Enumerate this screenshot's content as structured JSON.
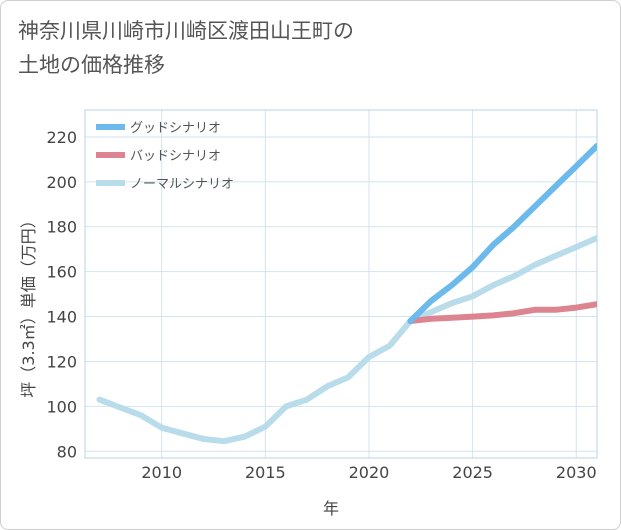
{
  "title_line1": "神奈川県川崎市川崎区渡田山王町の",
  "title_line2": "土地の価格推移",
  "chart_data": {
    "type": "line",
    "title": "神奈川県川崎市川崎区渡田山王町の土地の価格推移",
    "xlabel": "年",
    "ylabel": "坪（3.3㎡）単価（万円）",
    "xlim": [
      2006.3,
      2031
    ],
    "ylim": [
      77,
      232
    ],
    "xticks": [
      2010,
      2015,
      2020,
      2025,
      2030
    ],
    "yticks": [
      80,
      100,
      120,
      140,
      160,
      180,
      200,
      220
    ],
    "grid": true,
    "legend_position": "top-left",
    "series": [
      {
        "name": "グッドシナリオ",
        "color": "#6cb9ec",
        "x": [
          2022,
          2023,
          2024,
          2025,
          2026,
          2027,
          2028,
          2029,
          2030,
          2031
        ],
        "y": [
          138,
          147,
          154,
          162,
          172,
          180,
          189,
          198,
          207,
          216
        ]
      },
      {
        "name": "バッドシナリオ",
        "color": "#dc8591",
        "x": [
          2022,
          2023,
          2024,
          2025,
          2026,
          2027,
          2028,
          2029,
          2030,
          2031
        ],
        "y": [
          138,
          139,
          139.5,
          140,
          140.5,
          141.5,
          143,
          143,
          144,
          145.5
        ]
      },
      {
        "name": "ノーマルシナリオ",
        "color": "#b9dceb",
        "x": [
          2007,
          2008,
          2009,
          2010,
          2011,
          2012,
          2013,
          2014,
          2015,
          2016,
          2017,
          2018,
          2019,
          2020,
          2021,
          2022,
          2023,
          2024,
          2025,
          2026,
          2027,
          2028,
          2029,
          2030,
          2031
        ],
        "y": [
          103,
          99.5,
          96,
          90.5,
          88,
          85.5,
          84.5,
          86.5,
          91,
          100,
          103,
          109,
          113,
          122,
          127,
          138,
          142,
          146,
          149,
          154,
          158,
          163,
          167,
          171,
          175
        ]
      }
    ]
  }
}
